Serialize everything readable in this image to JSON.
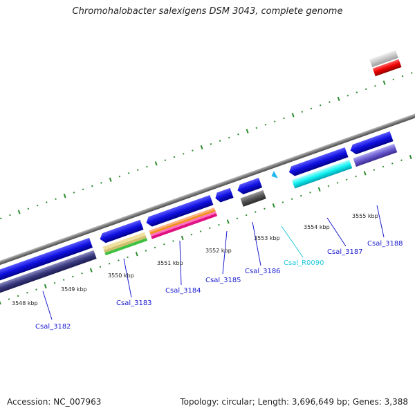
{
  "title": "Chromohalobacter salexigens DSM 3043, complete genome",
  "footer": {
    "accession": "Accession: NC_007963",
    "summary": "Topology: circular; Length: 3,696,649 bp; Genes: 3,388"
  },
  "scale_labels": [
    "3548 kbp",
    "3549 kbp",
    "3550 kbp",
    "3551 kbp",
    "3552 kbp",
    "3553 kbp",
    "3554 kbp",
    "3555 kbp"
  ],
  "genes": [
    {
      "id": "Csal_3182",
      "color": "#1a1ad0"
    },
    {
      "id": "Csal_3183",
      "color": "#1a1ad0"
    },
    {
      "id": "Csal_3184",
      "color": "#1a1ad0"
    },
    {
      "id": "Csal_3185",
      "color": "#1a1ad0"
    },
    {
      "id": "Csal_3186",
      "color": "#1a1ad0"
    },
    {
      "id": "Csal_R0090",
      "color": "#22c8dd"
    },
    {
      "id": "Csal_3187",
      "color": "#1a1ad0"
    },
    {
      "id": "Csal_3188",
      "color": "#1a1ad0"
    }
  ],
  "colors": {
    "backbone": "#8a8a8a",
    "cds": "#1010e0",
    "trna": "#22e8f0",
    "tick": "#2a8a2a"
  }
}
